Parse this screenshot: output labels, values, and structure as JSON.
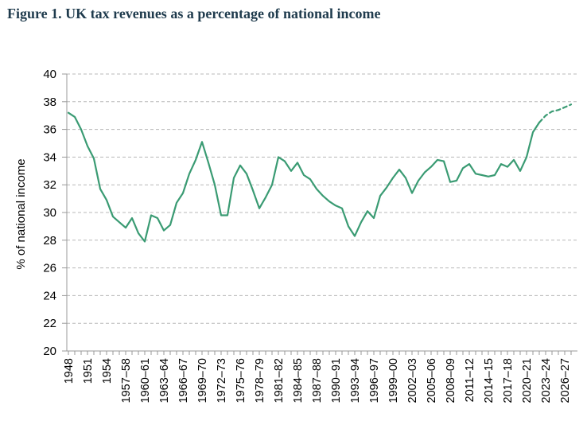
{
  "figure": {
    "title": "Figure 1. UK tax revenues as a percentage of national income"
  },
  "chart_data": {
    "type": "line",
    "title": "Figure 1. UK tax revenues as a percentage of national income",
    "xlabel": "",
    "ylabel": "% of national income",
    "ylim": [
      20,
      40
    ],
    "yticks": [
      20,
      22,
      24,
      26,
      28,
      30,
      32,
      34,
      36,
      38,
      40
    ],
    "grid": "horizontal dashed",
    "line_color": "#3a9b73",
    "x_tick_labels": [
      "1948",
      "1951",
      "1954",
      "1957–58",
      "1960–61",
      "1963–64",
      "1966–67",
      "1969–70",
      "1972–73",
      "1975–76",
      "1978–79",
      "1981–82",
      "1984–85",
      "1987–88",
      "1990–91",
      "1993–94",
      "1996–97",
      "1999–00",
      "2002–03",
      "2005–06",
      "2008–09",
      "2011–12",
      "2014–15",
      "2017–18",
      "2020–21",
      "2023–24",
      "2026–27"
    ],
    "series": [
      {
        "style": "solid",
        "x": [
          "1948",
          "1949",
          "1950",
          "1951",
          "1952",
          "1953",
          "1954",
          "1955",
          "1956",
          "1957–58",
          "1958–59",
          "1959–60",
          "1960–61",
          "1961–62",
          "1962–63",
          "1963–64",
          "1964–65",
          "1965–66",
          "1966–67",
          "1967–68",
          "1968–69",
          "1969–70",
          "1970–71",
          "1971–72",
          "1972–73",
          "1973–74",
          "1974–75",
          "1975–76",
          "1976–77",
          "1977–78",
          "1978–79",
          "1979–80",
          "1980–81",
          "1981–82",
          "1982–83",
          "1983–84",
          "1984–85",
          "1985–86",
          "1986–87",
          "1987–88",
          "1988–89",
          "1989–90",
          "1990–91",
          "1991–92",
          "1992–93",
          "1993–94",
          "1994–95",
          "1995–96",
          "1996–97",
          "1997–98",
          "1998–99",
          "1999–00",
          "2000–01",
          "2001–02",
          "2002–03",
          "2003–04",
          "2004–05",
          "2005–06",
          "2006–07",
          "2007–08",
          "2008–09",
          "2009–10",
          "2010–11",
          "2011–12",
          "2012–13",
          "2013–14",
          "2014–15",
          "2015–16",
          "2016–17",
          "2017–18",
          "2018–19",
          "2019–20",
          "2020–21",
          "2021–22",
          "2022–23"
        ],
        "values": [
          37.2,
          36.9,
          36.0,
          34.8,
          33.9,
          31.7,
          30.9,
          29.7,
          29.3,
          28.9,
          29.6,
          28.5,
          27.9,
          29.8,
          29.6,
          28.7,
          29.1,
          30.7,
          31.4,
          32.8,
          33.8,
          35.1,
          33.6,
          32.0,
          29.8,
          29.8,
          32.5,
          33.4,
          32.8,
          31.6,
          30.3,
          31.1,
          32.0,
          34.0,
          33.7,
          33.0,
          33.6,
          32.7,
          32.4,
          31.7,
          31.2,
          30.8,
          30.5,
          30.3,
          29.0,
          28.3,
          29.3,
          30.1,
          29.6,
          31.2,
          31.8,
          32.5,
          33.1,
          32.5,
          31.4,
          32.3,
          32.9,
          33.3,
          33.8,
          33.7,
          32.2,
          32.3,
          33.2,
          33.5,
          32.8,
          32.7,
          32.6,
          32.7,
          33.5,
          33.3,
          33.8,
          33.0,
          34.0,
          35.8,
          36.5
        ]
      },
      {
        "style": "dashed",
        "x": [
          "2022–23",
          "2023–24",
          "2024–25",
          "2025–26",
          "2026–27",
          "2027–28"
        ],
        "values": [
          36.5,
          37.0,
          37.3,
          37.4,
          37.6,
          37.8
        ]
      }
    ]
  }
}
